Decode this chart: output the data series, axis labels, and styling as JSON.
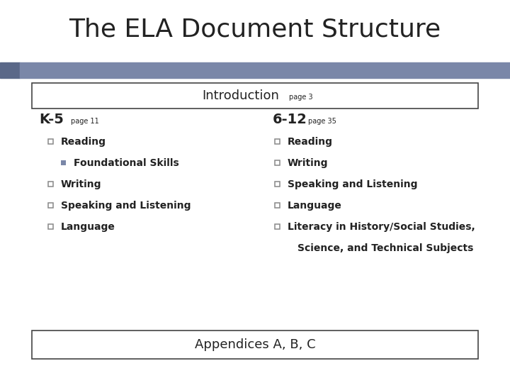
{
  "title": "The ELA Document Structure",
  "title_fontsize": 26,
  "title_color": "#222222",
  "bg_color": "#ffffff",
  "header_bar_color": "#7a87a8",
  "header_bar_left_color": "#5a6888",
  "intro_box_text": "Introduction",
  "intro_page_text": "page 3",
  "k5_label": "K-5",
  "k5_page": "page 11",
  "grade612_label": "6-12",
  "grade612_page": "page 35",
  "k5_items": [
    {
      "text": "Reading",
      "level": 1
    },
    {
      "text": "Foundational Skills",
      "level": 2
    },
    {
      "text": "Writing",
      "level": 1
    },
    {
      "text": "Speaking and Listening",
      "level": 1
    },
    {
      "text": "Language",
      "level": 1
    }
  ],
  "grade612_items": [
    {
      "text": "Reading",
      "level": 1
    },
    {
      "text": "Writing",
      "level": 1
    },
    {
      "text": "Speaking and Listening",
      "level": 1
    },
    {
      "text": "Language",
      "level": 1
    },
    {
      "text": "Literacy in History/Social Studies,",
      "level": 1
    },
    {
      "text": "Science, and Technical Subjects",
      "level": 3
    }
  ],
  "appendices_text": "Appendices A, B, C",
  "bullet_color": "#888888",
  "square_bullet_color": "#7a87a8"
}
